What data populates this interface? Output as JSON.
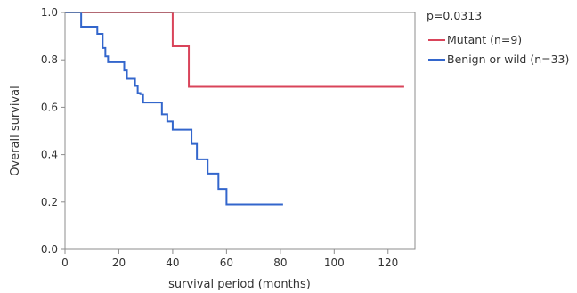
{
  "chart_data": {
    "type": "line",
    "subtype": "kaplan-meier step",
    "annotation": "p=0.0313",
    "xlabel": "survival period (months)",
    "ylabel": "Overall survival",
    "xlim": [
      0,
      130
    ],
    "ylim": [
      0,
      1.0
    ],
    "x_ticks": [
      0,
      20,
      40,
      60,
      80,
      100,
      120
    ],
    "y_ticks": [
      0.0,
      0.2,
      0.4,
      0.6,
      0.8,
      1.0
    ],
    "x_tick_labels": [
      "0",
      "20",
      "40",
      "60",
      "80",
      "100",
      "120"
    ],
    "y_tick_labels": [
      "0.0",
      "0.2",
      "0.4",
      "0.6",
      "0.8",
      "1.0"
    ],
    "grid": false,
    "legend_position": "right",
    "series": [
      {
        "name": "Mutant (n=9)",
        "color": "#d9445a",
        "x": [
          0,
          40,
          46,
          126
        ],
        "y": [
          1.0,
          0.857,
          0.686,
          0.686
        ]
      },
      {
        "name": "Benign or wild (n=33)",
        "color": "#3366cc",
        "x": [
          0,
          6,
          12,
          14,
          15,
          16,
          22,
          23,
          24,
          26,
          27,
          28,
          29,
          36,
          38,
          40,
          47,
          49,
          53,
          57,
          60,
          81
        ],
        "y": [
          1.0,
          0.94,
          0.91,
          0.85,
          0.815,
          0.79,
          0.755,
          0.72,
          0.72,
          0.69,
          0.66,
          0.655,
          0.62,
          0.57,
          0.54,
          0.505,
          0.445,
          0.38,
          0.32,
          0.255,
          0.19,
          0.19
        ]
      }
    ]
  }
}
